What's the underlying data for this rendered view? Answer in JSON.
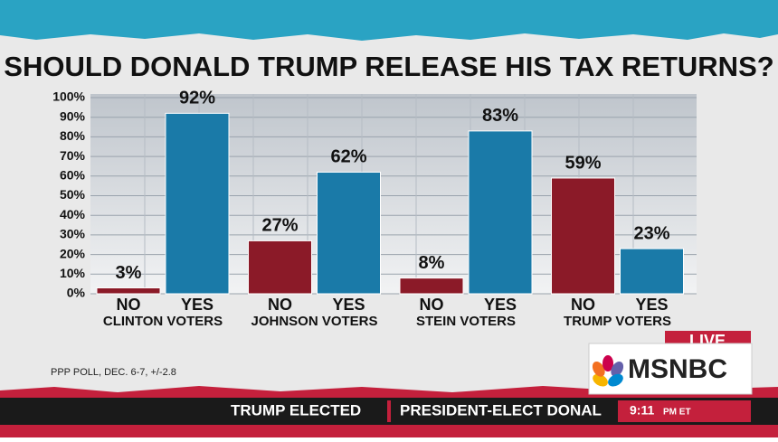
{
  "chart_data": {
    "type": "grouped_bar",
    "title": "SHOULD DONALD TRUMP RELEASE HIS TAX RETURNS?",
    "categories": [
      "CLINTON VOTERS",
      "JOHNSON VOTERS",
      "STEIN VOTERS",
      "TRUMP VOTERS"
    ],
    "series": [
      {
        "name": "NO",
        "color": "#8b1a28",
        "values": [
          3,
          27,
          8,
          59
        ],
        "value_labels": [
          "3%",
          "27%",
          "8%",
          "59%"
        ]
      },
      {
        "name": "YES",
        "color": "#1a7aa8",
        "values": [
          92,
          62,
          83,
          23
        ],
        "value_labels": [
          "92%",
          "62%",
          "83%",
          "23%"
        ]
      }
    ],
    "ylim": [
      0,
      100
    ],
    "yticks": [
      {
        "value": 0,
        "label": "0%"
      },
      {
        "value": 10,
        "label": "10%"
      },
      {
        "value": 20,
        "label": "20%"
      },
      {
        "value": 30,
        "label": "30%"
      },
      {
        "value": 40,
        "label": "40%"
      },
      {
        "value": 50,
        "label": "50%"
      },
      {
        "value": 60,
        "label": "60%"
      },
      {
        "value": 70,
        "label": "70%"
      },
      {
        "value": 80,
        "label": "80%"
      },
      {
        "value": 90,
        "label": "90%"
      },
      {
        "value": 100,
        "label": "100%"
      }
    ],
    "grid": true
  },
  "source": "PPP POLL, DEC. 6-7, +/-2.8",
  "broadcast": {
    "live": "LIVE",
    "network": "MSNBC",
    "ticker_label": "TRUMP ELECTED",
    "ticker_text": "PRESIDENT-ELECT DONAL",
    "time": "9:11",
    "time_suffix": "PM ET"
  }
}
